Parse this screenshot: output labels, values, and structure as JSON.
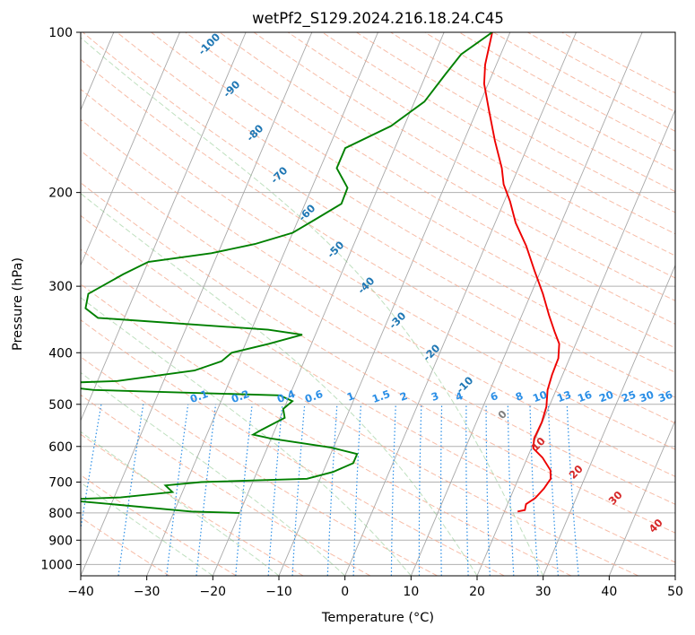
{
  "chart_data": {
    "type": "line",
    "subtype": "skew-T log-P diagram",
    "title": "wetPf2_S129.2024.216.18.24.C45",
    "xlabel": "Temperature (°C)",
    "ylabel": "Pressure (hPa)",
    "xlim": [
      -40,
      50
    ],
    "ylim": [
      1050,
      100
    ],
    "y_scale": "log",
    "grid": true,
    "x_ticks": [
      -40,
      -30,
      -20,
      -10,
      0,
      10,
      20,
      30,
      40,
      50
    ],
    "x_tick_labels": [
      "−40",
      "−30",
      "−20",
      "−10",
      "0",
      "10",
      "20",
      "30",
      "40",
      "50"
    ],
    "y_ticks": [
      100,
      200,
      300,
      400,
      500,
      600,
      700,
      800,
      900,
      1000
    ],
    "y_tick_labels": [
      "100",
      "200",
      "300",
      "400",
      "500",
      "600",
      "700",
      "800",
      "900",
      "1000"
    ],
    "series": [
      {
        "role": "temperature",
        "color": "#ee0000",
        "points": [
          [
            22.0,
            795
          ],
          [
            23.0,
            790
          ],
          [
            22.8,
            770
          ],
          [
            23.8,
            750
          ],
          [
            24.5,
            720
          ],
          [
            24.9,
            690
          ],
          [
            24.3,
            665
          ],
          [
            22.3,
            630
          ],
          [
            20.3,
            605
          ],
          [
            19.8,
            580
          ],
          [
            19.9,
            540
          ],
          [
            19.6,
            505
          ],
          [
            18.7,
            470
          ],
          [
            18.4,
            440
          ],
          [
            18.3,
            410
          ],
          [
            17.5,
            385
          ],
          [
            16.0,
            365
          ],
          [
            14.1,
            340
          ],
          [
            11.8,
            310
          ],
          [
            9.0,
            280
          ],
          [
            6.2,
            252
          ],
          [
            3.1,
            228
          ],
          [
            0.9,
            208
          ],
          [
            -1.2,
            193
          ],
          [
            -2.5,
            180
          ],
          [
            -5.3,
            160
          ],
          [
            -8.2,
            140
          ],
          [
            -10.6,
            125
          ],
          [
            -11.7,
            115
          ],
          [
            -12.7,
            100
          ]
        ]
      },
      {
        "role": "dewpoint",
        "color": "#008000",
        "points": [
          [
            -20.0,
            800
          ],
          [
            -27.5,
            795
          ],
          [
            -40.0,
            770
          ],
          [
            -48.0,
            755
          ],
          [
            -39.0,
            748
          ],
          [
            -31.5,
            731
          ],
          [
            -33.0,
            710
          ],
          [
            -27.8,
            700
          ],
          [
            -12.0,
            690
          ],
          [
            -8.5,
            670
          ],
          [
            -6.0,
            645
          ],
          [
            -6.0,
            620
          ],
          [
            -10.3,
            603
          ],
          [
            -20.0,
            580
          ],
          [
            -23.0,
            570
          ],
          [
            -22.0,
            558
          ],
          [
            -19.3,
            530
          ],
          [
            -20.1,
            510
          ],
          [
            -19.2,
            493
          ],
          [
            -21.5,
            481
          ],
          [
            -50.0,
            470
          ],
          [
            -57.0,
            460
          ],
          [
            -64.0,
            460
          ],
          [
            -47.0,
            452
          ],
          [
            -36.0,
            432
          ],
          [
            -32.5,
            415
          ],
          [
            -31.5,
            400
          ],
          [
            -26.5,
            385
          ],
          [
            -22.0,
            370
          ],
          [
            -27.5,
            362
          ],
          [
            -54.0,
            344
          ],
          [
            -56.5,
            330
          ],
          [
            -57.0,
            310
          ],
          [
            -53.0,
            285
          ],
          [
            -50.0,
            270
          ],
          [
            -41.0,
            260
          ],
          [
            -35.0,
            250
          ],
          [
            -30.0,
            238
          ],
          [
            -27.5,
            225
          ],
          [
            -24.5,
            210
          ],
          [
            -24.6,
            196
          ],
          [
            -27.5,
            180
          ],
          [
            -27.5,
            165
          ],
          [
            -22.0,
            150
          ],
          [
            -18.5,
            135
          ],
          [
            -17.1,
            120
          ],
          [
            -16.0,
            110
          ],
          [
            -12.7,
            100
          ]
        ]
      }
    ],
    "dry_adiabat_labels": [
      "-100",
      "-90",
      "-80",
      "-70",
      "-60",
      "-50",
      "-40",
      "-30",
      "-20",
      "-10"
    ],
    "moist_adiabat_labels": [
      "0",
      "10",
      "20",
      "30",
      "40"
    ],
    "mixing_ratio_labels": [
      "0.1",
      "0.2",
      "0.4",
      "0.6",
      "1",
      "1.5",
      "2",
      "3",
      "4",
      "6",
      "8",
      "10",
      "13",
      "16",
      "20",
      "25",
      "30",
      "36"
    ]
  }
}
